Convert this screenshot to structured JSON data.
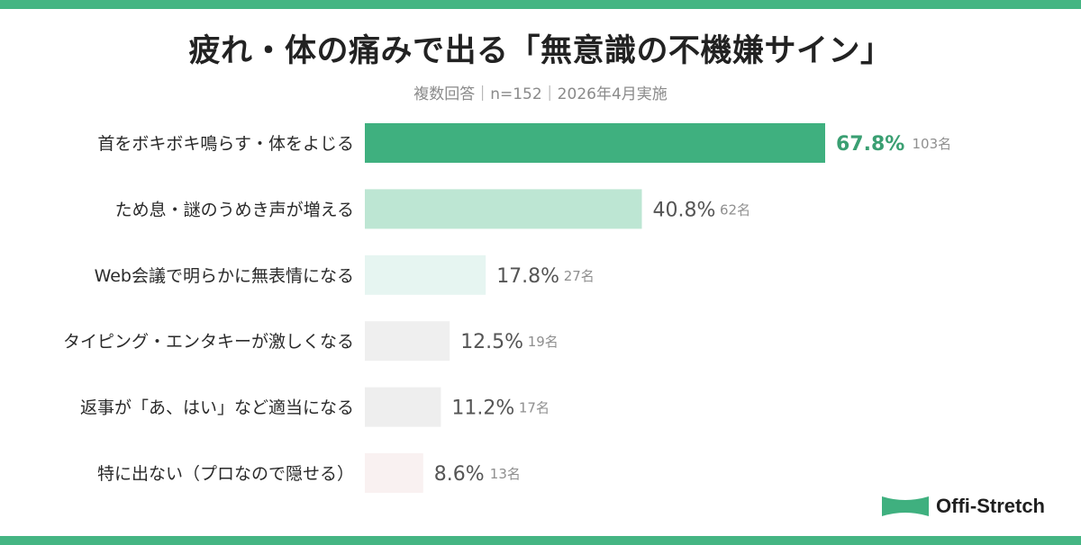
{
  "title": "疲れ・体の痛みで出る「無意識の不機嫌サイン」",
  "subtitle": "複数回答｜n=152｜2026年4月実施",
  "brand": {
    "name": "Offi-Stretch",
    "mark": "ribbon-logo"
  },
  "colors": {
    "accent": "#3fb07f",
    "band": "#45b583",
    "text": "#222222",
    "muted": "#8a8a8a"
  },
  "chart_data": {
    "type": "bar",
    "orientation": "horizontal",
    "categories": [
      "首をボキボキ鳴らす・体をよじる",
      "ため息・謎のうめき声が増える",
      "Web会議で明らかに無表情になる",
      "タイピング・エンタキーが激しくなる",
      "返事が「あ、はい」など適当になる",
      "特に出ない（プロなので隠せる）"
    ],
    "values": [
      67.8,
      40.8,
      17.8,
      12.5,
      11.2,
      8.6
    ],
    "value_labels": [
      "67.8%",
      "40.8%",
      "17.8%",
      "12.5%",
      "11.2%",
      "8.6%"
    ],
    "counts": [
      "103名",
      "62名",
      "27名",
      "19名",
      "17名",
      "13名"
    ],
    "bar_colors": [
      "#3fb07f",
      "#bde6d3",
      "#e6f5f1",
      "#efefef",
      "#eeeeee",
      "#f9f1f1"
    ],
    "highlight_color": "#3a9f72",
    "xlim": [
      0,
      67.8
    ]
  }
}
